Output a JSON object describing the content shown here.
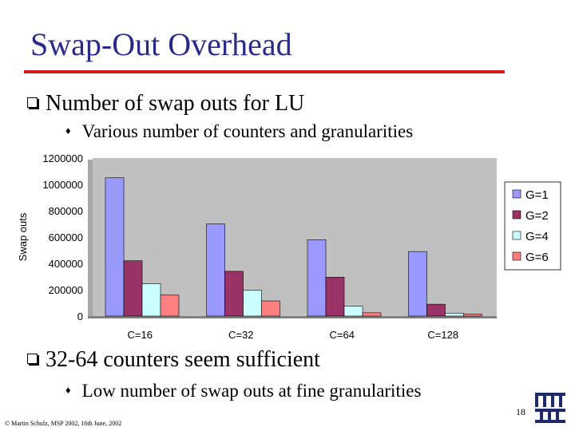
{
  "slide": {
    "title": "Swap-Out Overhead",
    "bullet1": "Number of swap outs for LU",
    "sub1": "Various number of counters and granularities",
    "bullet2": "32-64 counters seem sufficient",
    "sub2": "Low number of swap outs at fine granularities",
    "footer": "© Martin Schulz, MSP 2002, 16th June, 2002",
    "page_number": "18",
    "colors": {
      "title": "#2a2a8a",
      "rule": "#d21a1a"
    }
  },
  "chart_data": {
    "type": "bar",
    "categories": [
      "C=16",
      "C=32",
      "C=64",
      "C=128"
    ],
    "series": [
      {
        "name": "G=1",
        "color": "#9999ff",
        "values": [
          1050000,
          700000,
          580000,
          490000
        ]
      },
      {
        "name": "G=2",
        "color": "#993366",
        "values": [
          420000,
          340000,
          295000,
          90000
        ]
      },
      {
        "name": "G=4",
        "color": "#ccffff",
        "values": [
          245000,
          195000,
          75000,
          22000
        ]
      },
      {
        "name": "G=6",
        "color": "#ff8080",
        "values": [
          160000,
          115000,
          25000,
          15000
        ]
      }
    ],
    "yticks": [
      "0",
      "200000",
      "400000",
      "600000",
      "800000",
      "1000000",
      "1200000"
    ],
    "ylim": [
      0,
      1200000
    ],
    "ylabel": "Swap outs",
    "xlabel": "",
    "title": "",
    "grid": false,
    "plot_bg": "#c0c0c0",
    "legend_position": "right"
  }
}
